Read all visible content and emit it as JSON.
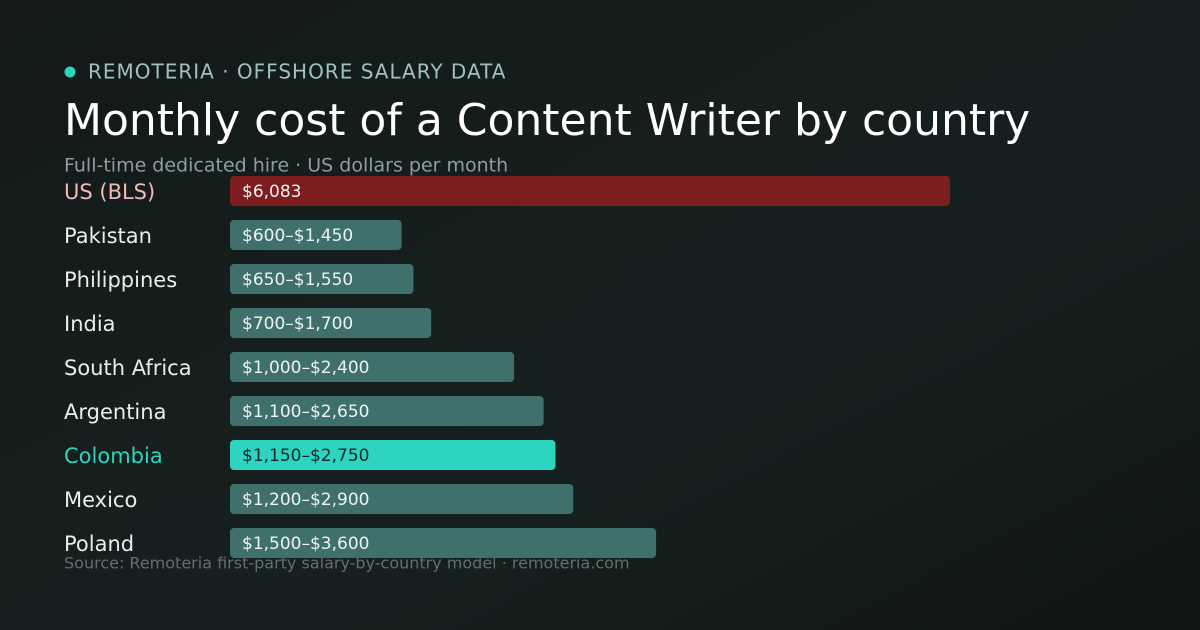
{
  "chart_data": {
    "type": "bar",
    "orientation": "horizontal",
    "kicker": "REMOTERIA · OFFSHORE SALARY DATA",
    "title": "Monthly cost of a Content Writer by country",
    "subtitle": "Full-time dedicated hire · US dollars per month",
    "source": "Source: Remoteria first-party salary-by-country model · remoteria.com",
    "categories": [
      "US (BLS)",
      "Pakistan",
      "Philippines",
      "India",
      "South Africa",
      "Argentina",
      "Colombia",
      "Mexico",
      "Poland"
    ],
    "values": [
      6083,
      1450,
      1550,
      1700,
      2400,
      2650,
      2750,
      2900,
      3600
    ],
    "value_labels": [
      "$6,083",
      "$600–$1,450",
      "$650–$1,550",
      "$700–$1,700",
      "$1,000–$2,400",
      "$1,100–$2,650",
      "$1,150–$2,750",
      "$1,200–$2,900",
      "$1,500–$3,600"
    ],
    "colors": [
      "#7d1d1f",
      "#3f706b",
      "#3f706b",
      "#3f706b",
      "#3f706b",
      "#3f706b",
      "#2dd4bf",
      "#3f706b",
      "#3f706b"
    ],
    "label_colors": [
      "#f5b8b8",
      "#e8eeec",
      "#e8eeec",
      "#e8eeec",
      "#e8eeec",
      "#e8eeec",
      "#2dd4bf",
      "#e8eeec",
      "#e8eeec"
    ]
  }
}
